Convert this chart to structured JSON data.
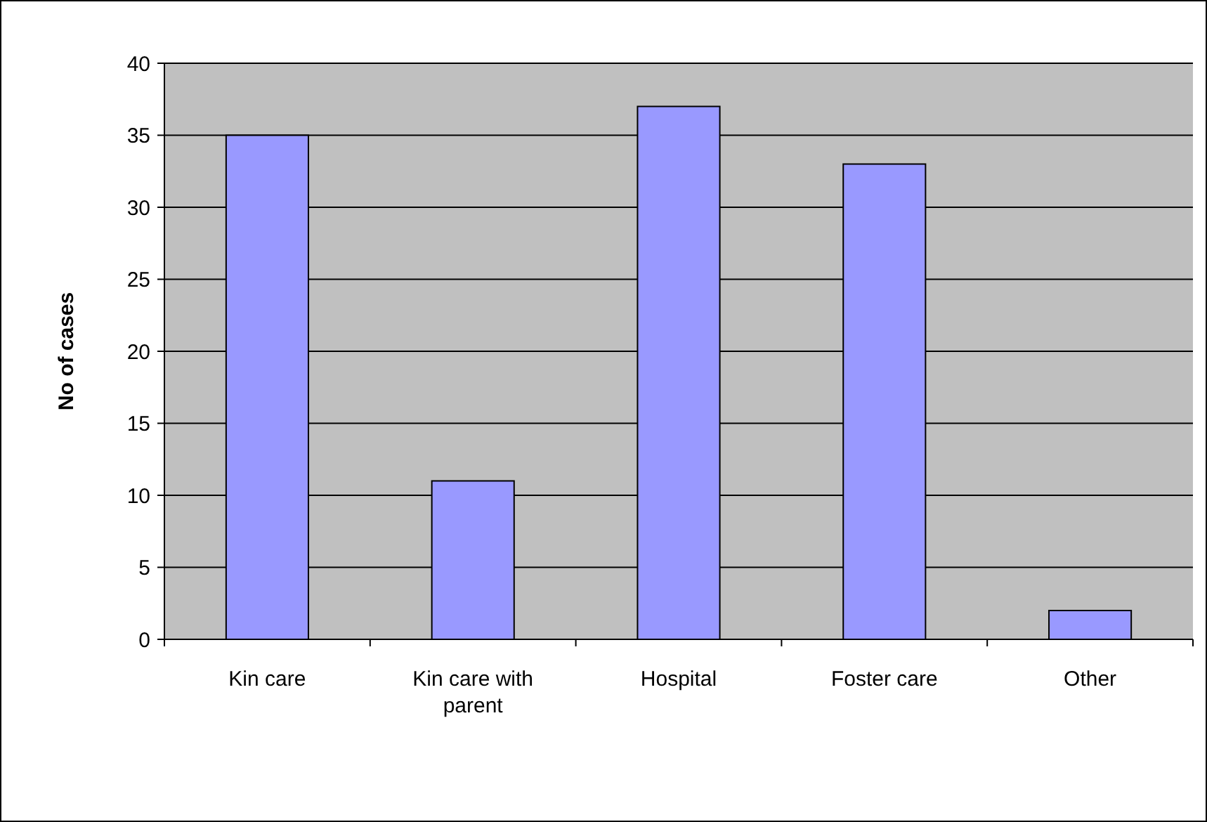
{
  "chart_data": {
    "type": "bar",
    "ylabel": "No of cases",
    "categories": [
      "Kin care",
      "Kin care with parent",
      "Hospital",
      "Foster care",
      "Other"
    ],
    "values": [
      35,
      11,
      37,
      33,
      2
    ],
    "color": "#9999ff",
    "ylim": [
      0,
      40
    ],
    "yticks": [
      0,
      5,
      10,
      15,
      20,
      25,
      30,
      35,
      40
    ],
    "grid": "y"
  }
}
